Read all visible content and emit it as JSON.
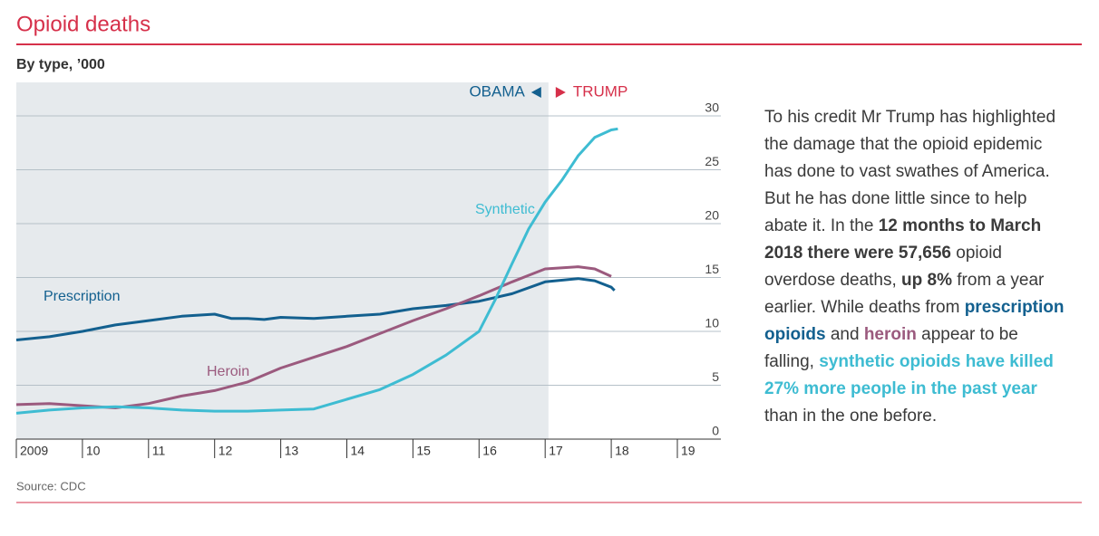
{
  "chart_data": {
    "type": "line",
    "title": "Opioid deaths",
    "subtitle": "By type, ’000",
    "source": "Source: CDC",
    "annotations": {
      "left": "OBAMA",
      "right": "TRUMP"
    },
    "shaded_xlim": [
      2009,
      2017.05
    ],
    "xlim": [
      2009,
      2019
    ],
    "xticks": [
      {
        "value": 2009,
        "label": "2009"
      },
      {
        "value": 2010,
        "label": "10"
      },
      {
        "value": 2011,
        "label": "11"
      },
      {
        "value": 2012,
        "label": "12"
      },
      {
        "value": 2013,
        "label": "13"
      },
      {
        "value": 2014,
        "label": "14"
      },
      {
        "value": 2015,
        "label": "15"
      },
      {
        "value": 2016,
        "label": "16"
      },
      {
        "value": 2017,
        "label": "17"
      },
      {
        "value": 2018,
        "label": "18"
      },
      {
        "value": 2019,
        "label": "19"
      }
    ],
    "ylim": [
      0,
      30
    ],
    "yticks": [
      0,
      5,
      10,
      15,
      20,
      25,
      30
    ],
    "grid": true,
    "series": [
      {
        "name": "Prescription",
        "color": "#13608f",
        "x": [
          2009,
          2009.5,
          2010,
          2010.5,
          2011,
          2011.5,
          2012,
          2012.25,
          2012.5,
          2012.75,
          2013,
          2013.5,
          2014,
          2014.5,
          2015,
          2015.5,
          2016,
          2016.5,
          2017,
          2017.5,
          2017.75,
          2018,
          2018.05
        ],
        "values": [
          9.2,
          9.5,
          10.0,
          10.6,
          11.0,
          11.4,
          11.6,
          11.2,
          11.2,
          11.1,
          11.3,
          11.2,
          11.4,
          11.6,
          12.1,
          12.4,
          12.8,
          13.5,
          14.6,
          14.9,
          14.7,
          14.1,
          13.8
        ]
      },
      {
        "name": "Heroin",
        "color": "#9b5a7e",
        "x": [
          2009,
          2009.5,
          2010,
          2010.5,
          2011,
          2011.5,
          2012,
          2012.5,
          2013,
          2013.5,
          2014,
          2014.5,
          2015,
          2015.5,
          2016,
          2016.5,
          2016.75,
          2017,
          2017.5,
          2017.75,
          2018
        ],
        "values": [
          3.2,
          3.3,
          3.1,
          2.9,
          3.3,
          4.0,
          4.5,
          5.3,
          6.6,
          7.6,
          8.6,
          9.8,
          11.0,
          12.1,
          13.3,
          14.6,
          15.2,
          15.8,
          16.0,
          15.8,
          15.1
        ]
      },
      {
        "name": "Synthetic",
        "color": "#3ebcd2",
        "x": [
          2009,
          2009.5,
          2010,
          2010.5,
          2011,
          2011.5,
          2012,
          2012.5,
          2013,
          2013.5,
          2014,
          2014.5,
          2015,
          2015.5,
          2016,
          2016.25,
          2016.5,
          2016.75,
          2017,
          2017.25,
          2017.5,
          2017.75,
          2018,
          2018.1
        ],
        "values": [
          2.4,
          2.7,
          2.9,
          3.0,
          2.9,
          2.7,
          2.6,
          2.6,
          2.7,
          2.8,
          3.7,
          4.6,
          6.0,
          7.8,
          10.0,
          13.0,
          16.3,
          19.5,
          22.0,
          24.0,
          26.3,
          28.0,
          28.7,
          28.8
        ]
      }
    ]
  },
  "sidebar": {
    "segments": [
      {
        "text": "To his credit Mr Trump has highlighted the damage that the opioid epidemic has done to vast swathes of America. But he has done little since to help abate it. In the ",
        "style": "plain"
      },
      {
        "text": "12 months to March 2018 there were 57,656",
        "style": "bold"
      },
      {
        "text": " opioid overdose deaths, ",
        "style": "plain"
      },
      {
        "text": "up 8%",
        "style": "bold"
      },
      {
        "text": " from a year earlier. While deaths from ",
        "style": "plain"
      },
      {
        "text": "prescription opioids",
        "style": "prescription"
      },
      {
        "text": " and ",
        "style": "plain"
      },
      {
        "text": "heroin",
        "style": "heroin"
      },
      {
        "text": " appear to be falling, ",
        "style": "plain"
      },
      {
        "text": "synthetic opioids have killed 27% more people in the past year",
        "style": "synthetic"
      },
      {
        "text": " than in the one before.",
        "style": "plain"
      }
    ]
  }
}
